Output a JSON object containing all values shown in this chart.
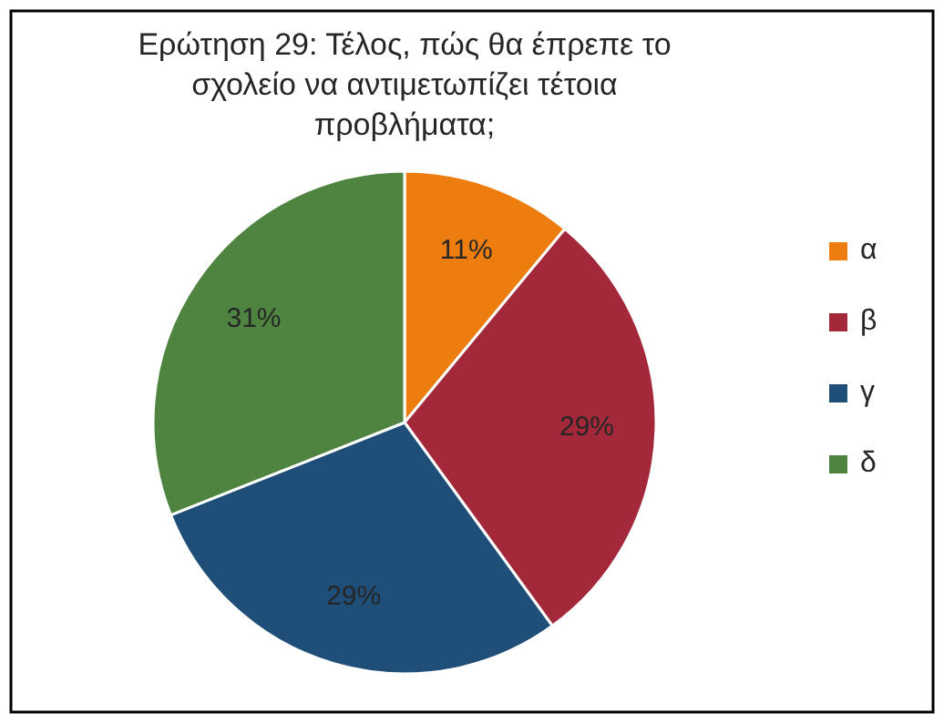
{
  "chart_data": {
    "type": "pie",
    "title": "Ερώτηση 29: Τέλος, πώς θα έπρεπε το σχολείο να αντιμετωπίζει τέτοια προβλήματα;",
    "categories": [
      "α",
      "β",
      "γ",
      "δ"
    ],
    "values": [
      11,
      29,
      29,
      31
    ],
    "colors": [
      "#ee7d10",
      "#a3293a",
      "#1f4f78",
      "#4f8440"
    ],
    "value_labels": [
      "11%",
      "29%",
      "29%",
      "31%"
    ],
    "legend": "right"
  }
}
